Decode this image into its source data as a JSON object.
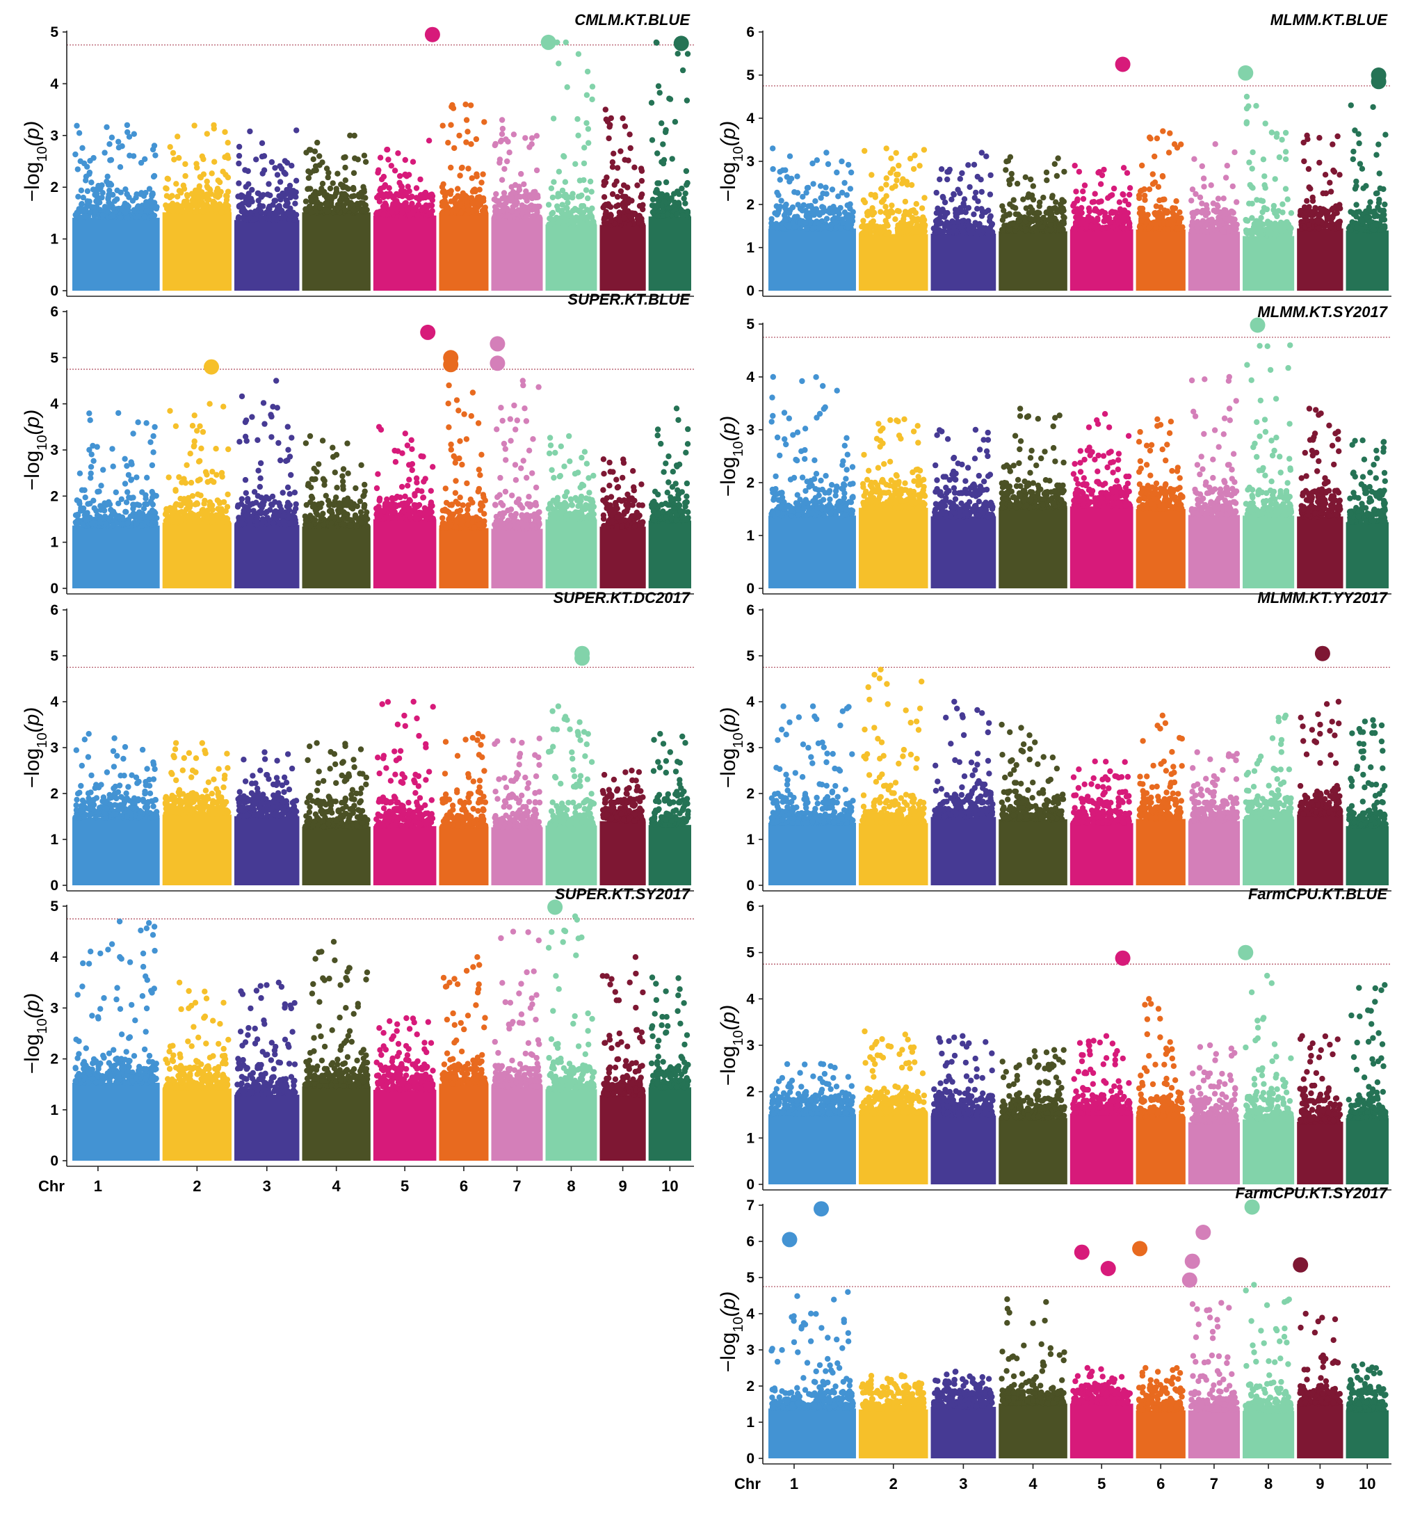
{
  "figure": {
    "type": "manhattan",
    "y_axis_label_main": "−log",
    "y_axis_label_sub": "10",
    "y_axis_label_arg": "(p)",
    "x_axis_label": "Chr",
    "chromosomes": [
      "1",
      "2",
      "3",
      "4",
      "5",
      "6",
      "7",
      "8",
      "9",
      "10"
    ],
    "chromosome_colors": [
      "#4393d3",
      "#f6c02a",
      "#463a94",
      "#4b5125",
      "#d71a7a",
      "#e86a1f",
      "#d47fb9",
      "#82d3aa",
      "#7e1733",
      "#257355"
    ],
    "threshold_color": "#b55a6a"
  },
  "chart_data": [
    {
      "type": "scatter",
      "title": "CMLM.KT.BLUE",
      "ylim": [
        0,
        5
      ],
      "yticks": [
        0,
        1,
        2,
        3,
        4,
        5
      ],
      "threshold": 4.75,
      "show_chr_axis": false,
      "chr_max": [
        3.2,
        3.2,
        3.1,
        3.0,
        2.9,
        3.6,
        3.3,
        4.8,
        3.5,
        4.8
      ],
      "significant": [
        {
          "chr": 5,
          "pos": 0.92,
          "value": 4.95
        },
        {
          "chr": 8,
          "pos": 0.08,
          "value": 4.8
        },
        {
          "chr": 10,
          "pos": 0.75,
          "value": 4.78
        }
      ]
    },
    {
      "type": "scatter",
      "title": "MLMM.KT.BLUE",
      "ylim": [
        0,
        6
      ],
      "yticks": [
        0,
        1,
        2,
        3,
        4,
        5,
        6
      ],
      "threshold": 4.75,
      "show_chr_axis": false,
      "chr_max": [
        3.3,
        3.3,
        3.2,
        3.1,
        2.9,
        3.7,
        3.4,
        4.5,
        3.6,
        4.3
      ],
      "significant": [
        {
          "chr": 5,
          "pos": 0.82,
          "value": 5.25
        },
        {
          "chr": 8,
          "pos": 0.08,
          "value": 5.05
        },
        {
          "chr": 10,
          "pos": 0.75,
          "value": 5.0
        },
        {
          "chr": 10,
          "pos": 0.75,
          "value": 4.85
        }
      ]
    },
    {
      "type": "scatter",
      "title": "SUPER.KT.BLUE",
      "ylim": [
        0,
        6
      ],
      "yticks": [
        0,
        1,
        2,
        3,
        4,
        5,
        6
      ],
      "threshold": 4.75,
      "show_chr_axis": false,
      "chr_max": [
        3.8,
        4.0,
        4.5,
        3.3,
        3.5,
        4.4,
        4.5,
        3.3,
        2.8,
        3.9
      ],
      "significant": [
        {
          "chr": 2,
          "pos": 0.7,
          "value": 4.8
        },
        {
          "chr": 5,
          "pos": 0.85,
          "value": 5.55
        },
        {
          "chr": 6,
          "pos": 0.25,
          "value": 5.0
        },
        {
          "chr": 6,
          "pos": 0.25,
          "value": 4.85
        },
        {
          "chr": 7,
          "pos": 0.14,
          "value": 5.3
        },
        {
          "chr": 7,
          "pos": 0.14,
          "value": 4.88
        }
      ]
    },
    {
      "type": "scatter",
      "title": "MLMM.KT.SY2017",
      "ylim": [
        0,
        5
      ],
      "yticks": [
        0,
        1,
        2,
        3,
        4,
        5
      ],
      "threshold": 4.75,
      "show_chr_axis": false,
      "chr_max": [
        4.0,
        3.2,
        3.0,
        3.4,
        3.3,
        3.2,
        4.0,
        4.6,
        3.4,
        2.8
      ],
      "significant": [
        {
          "chr": 8,
          "pos": 0.3,
          "value": 4.98
        }
      ]
    },
    {
      "type": "scatter",
      "title": "SUPER.KT.DC2017",
      "ylim": [
        0,
        6
      ],
      "yticks": [
        0,
        1,
        2,
        3,
        4,
        5,
        6
      ],
      "threshold": 4.75,
      "show_chr_axis": false,
      "chr_max": [
        3.3,
        3.1,
        2.9,
        3.1,
        4.0,
        3.3,
        3.2,
        3.9,
        2.5,
        3.3
      ],
      "significant": [
        {
          "chr": 8,
          "pos": 0.7,
          "value": 5.05
        },
        {
          "chr": 8,
          "pos": 0.7,
          "value": 4.95
        }
      ]
    },
    {
      "type": "scatter",
      "title": "MLMM.KT.YY2017",
      "ylim": [
        0,
        6
      ],
      "yticks": [
        0,
        1,
        2,
        3,
        4,
        5,
        6
      ],
      "threshold": 4.75,
      "show_chr_axis": false,
      "chr_max": [
        3.9,
        4.7,
        4.0,
        3.5,
        2.7,
        3.7,
        2.9,
        3.7,
        4.0,
        3.6
      ],
      "significant": [
        {
          "chr": 9,
          "pos": 0.55,
          "value": 5.05
        }
      ]
    },
    {
      "type": "scatter",
      "title": "SUPER.KT.SY2017",
      "ylim": [
        0,
        5
      ],
      "yticks": [
        0,
        1,
        2,
        3,
        4,
        5
      ],
      "threshold": 4.75,
      "show_chr_axis": true,
      "chr_max": [
        4.7,
        3.5,
        3.5,
        4.3,
        2.8,
        4.0,
        4.5,
        4.8,
        4.0,
        3.6
      ],
      "significant": [
        {
          "chr": 8,
          "pos": 0.2,
          "value": 4.98
        }
      ]
    },
    {
      "type": "scatter",
      "title": "FarmCPU.KT.BLUE",
      "ylim": [
        0,
        6
      ],
      "yticks": [
        0,
        1,
        2,
        3,
        4,
        5,
        6
      ],
      "threshold": 4.75,
      "show_chr_axis": false,
      "chr_max": [
        2.6,
        3.3,
        3.2,
        2.9,
        3.2,
        4.0,
        3.0,
        4.5,
        3.2,
        4.3
      ],
      "significant": [
        {
          "chr": 5,
          "pos": 0.82,
          "value": 4.88
        },
        {
          "chr": 8,
          "pos": 0.08,
          "value": 5.0
        }
      ]
    },
    {
      "type": "scatter",
      "title": "FarmCPU.KT.SY2017",
      "ylim": [
        0,
        7
      ],
      "yticks": [
        0,
        1,
        2,
        3,
        4,
        5,
        6,
        7
      ],
      "threshold": 4.75,
      "show_chr_axis": true,
      "chr_max": [
        4.6,
        2.3,
        2.4,
        4.4,
        2.5,
        2.5,
        4.3,
        4.8,
        4.0,
        2.6
      ],
      "significant": [
        {
          "chr": 1,
          "pos": 0.25,
          "value": 6.05
        },
        {
          "chr": 1,
          "pos": 0.6,
          "value": 6.9
        },
        {
          "chr": 5,
          "pos": 0.2,
          "value": 5.7
        },
        {
          "chr": 5,
          "pos": 0.6,
          "value": 5.25
        },
        {
          "chr": 6,
          "pos": 0.1,
          "value": 5.8
        },
        {
          "chr": 7,
          "pos": 0.05,
          "value": 4.93
        },
        {
          "chr": 7,
          "pos": 0.1,
          "value": 5.45
        },
        {
          "chr": 7,
          "pos": 0.3,
          "value": 6.25
        },
        {
          "chr": 8,
          "pos": 0.2,
          "value": 6.95
        },
        {
          "chr": 9,
          "pos": 0.1,
          "value": 5.35
        }
      ]
    }
  ]
}
